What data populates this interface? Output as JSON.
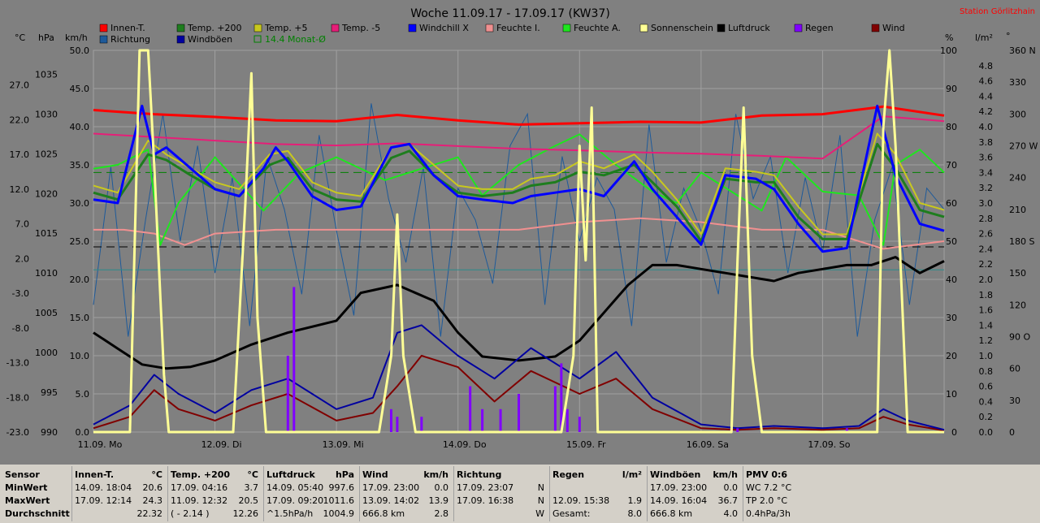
{
  "title": "Woche 11.09.17 - 17.09.17 (KW37)",
  "station": "Station Görlitzhain",
  "colors": {
    "background": "#808080",
    "grid": "#a0a0a0",
    "innen": "#ff0000",
    "richtung": "#1e5a9a",
    "temp200": "#1e7d1e",
    "windboeen": "#0000a0",
    "temp5": "#c8c81e",
    "avg": "#008000",
    "temp_5": "#e61e78",
    "windchill": "#0000ff",
    "feuchte_i": "#f09090",
    "feuchte_a": "#1ee61e",
    "sonne": "#ffff96",
    "luftdruck": "#000000",
    "regen": "#8000ff",
    "wind": "#800000"
  },
  "legend": [
    {
      "label": "Innen-T.",
      "color": "#ff0000"
    },
    {
      "label": "Temp. +200",
      "color": "#1e7d1e"
    },
    {
      "label": "Temp. +5",
      "color": "#c8c81e"
    },
    {
      "label": "Temp. -5",
      "color": "#e61e78"
    },
    {
      "label": "Windchill X",
      "color": "#0000ff"
    },
    {
      "label": "Feuchte I.",
      "color": "#f09090"
    },
    {
      "label": "Feuchte A.",
      "color": "#1ee61e"
    },
    {
      "label": "Sonnenschein",
      "color": "#ffff96"
    },
    {
      "label": "Luftdruck",
      "color": "#000000"
    },
    {
      "label": "Regen",
      "color": "#8000ff"
    },
    {
      "label": "Wind",
      "color": "#800000"
    },
    {
      "label": "Richtung",
      "color": "#1e5a9a"
    },
    {
      "label": "Windböen",
      "color": "#0000a0"
    },
    {
      "label": "14.4 Monat-Ø",
      "color": "#008000"
    }
  ],
  "axis_units": {
    "celsius": "°C",
    "hpa": "hPa",
    "kmh": "km/h",
    "percent": "%",
    "lm2": "l/m²",
    "deg": "°"
  },
  "chart_data": {
    "type": "line",
    "title": "Woche 11.09.17 - 17.09.17 (KW37)",
    "x_ticks": [
      "11.09. Mo",
      "12.09. Di",
      "13.09. Mi",
      "14.09. Do",
      "15.09. Fr",
      "16.09. Sa",
      "17.09. So"
    ],
    "axes": {
      "celsius": {
        "range": [
          -23.0,
          32.0
        ],
        "ticks": [
          "27.0",
          "22.0",
          "17.0",
          "12.0",
          "7.0",
          "2.0",
          "-3.0",
          "-8.0",
          "-13.0",
          "-18.0",
          "-23.0"
        ]
      },
      "hpa": {
        "range": [
          990,
          1038
        ],
        "ticks": [
          "1035",
          "1030",
          "1025",
          "1020",
          "1015",
          "1010",
          "1005",
          "1000",
          "995",
          "990"
        ]
      },
      "kmh": {
        "range": [
          0.0,
          50.0
        ],
        "ticks": [
          "50.0",
          "45.0",
          "40.0",
          "35.0",
          "30.0",
          "25.0",
          "20.0",
          "15.0",
          "10.0",
          "5.0",
          "0.0"
        ]
      },
      "percent": {
        "range": [
          0,
          100
        ],
        "ticks": [
          "100",
          "90",
          "80",
          "70",
          "60",
          "50",
          "40",
          "30",
          "20",
          "10",
          "0"
        ]
      },
      "lm2": {
        "range": [
          0.0,
          5.0
        ],
        "ticks": [
          "4.8",
          "4.6",
          "4.4",
          "4.2",
          "4.0",
          "3.8",
          "3.6",
          "3.4",
          "3.2",
          "3.0",
          "2.8",
          "2.6",
          "2.4",
          "2.2",
          "2.0",
          "1.8",
          "1.6",
          "1.4",
          "1.2",
          "1.0",
          "0.8",
          "0.6",
          "0.4",
          "0.2",
          "0.0"
        ]
      },
      "deg": {
        "range": [
          0,
          360
        ],
        "ticks": [
          "360 N",
          "330",
          "300",
          "270 W",
          "240",
          "210",
          "180 S",
          "150",
          "120",
          "90 O",
          "60",
          "30",
          "0"
        ]
      }
    },
    "series": [
      {
        "name": "Innen-T.",
        "axis": "celsius",
        "x": [
          0,
          0.5,
          1,
          1.5,
          2,
          2.5,
          3,
          3.5,
          4,
          4.5,
          5,
          5.5,
          6,
          6.5,
          7
        ],
        "y": [
          23.4,
          22.8,
          22.4,
          21.9,
          21.8,
          22.7,
          21.9,
          21.3,
          21.5,
          21.7,
          21.6,
          22.6,
          22.8,
          23.9,
          22.6
        ]
      },
      {
        "name": "Temp. -5",
        "axis": "celsius",
        "x": [
          0,
          0.5,
          1,
          1.5,
          2,
          2.5,
          3,
          3.5,
          4,
          4.5,
          5,
          5.5,
          6,
          6.5,
          7
        ],
        "y": [
          20.0,
          19.5,
          19.0,
          18.5,
          18.3,
          18.6,
          18.2,
          17.8,
          17.6,
          17.3,
          17.1,
          16.8,
          16.4,
          22.5,
          21.8
        ]
      },
      {
        "name": "Temp. +200",
        "axis": "celsius",
        "x": [
          0,
          0.2,
          0.45,
          0.6,
          0.8,
          1,
          1.2,
          1.45,
          1.6,
          1.8,
          2,
          2.2,
          2.45,
          2.6,
          2.8,
          3,
          3.2,
          3.45,
          3.6,
          3.8,
          4,
          4.2,
          4.45,
          4.6,
          4.8,
          5,
          5.2,
          5.45,
          5.6,
          5.8,
          6,
          6.2,
          6.45,
          6.6,
          6.8,
          7
        ],
        "y": [
          11.5,
          10.5,
          17.0,
          16.2,
          14.0,
          12.0,
          11.0,
          15.5,
          16.5,
          12.0,
          10.5,
          10.2,
          16.5,
          17.5,
          14.0,
          11.5,
          11.0,
          11.5,
          12.5,
          13.0,
          14.5,
          14.0,
          15.5,
          13.0,
          9.5,
          4.5,
          13.5,
          13.0,
          13.0,
          8.0,
          4.8,
          4.8,
          18.5,
          15.0,
          9.0,
          8.0
        ]
      },
      {
        "name": "Temp. +5",
        "axis": "celsius",
        "x": [
          0,
          0.2,
          0.45,
          0.6,
          0.8,
          1,
          1.2,
          1.45,
          1.6,
          1.8,
          2,
          2.2,
          2.45,
          2.6,
          2.8,
          3,
          3.2,
          3.45,
          3.6,
          3.8,
          4,
          4.2,
          4.45,
          4.6,
          4.8,
          5,
          5.2,
          5.45,
          5.6,
          5.8,
          6,
          6.2,
          6.45,
          6.6,
          6.8,
          7
        ],
        "y": [
          12.5,
          11.5,
          19.0,
          17.0,
          15.0,
          13.0,
          12.0,
          17.0,
          17.5,
          13.0,
          11.5,
          11.0,
          18.0,
          18.5,
          15.5,
          12.5,
          12.0,
          12.0,
          13.5,
          14.0,
          16.0,
          15.0,
          17.0,
          14.5,
          10.5,
          5.5,
          15.0,
          14.5,
          14.0,
          9.5,
          5.5,
          5.5,
          20.0,
          17.0,
          10.0,
          9.0
        ]
      },
      {
        "name": "Windchill X",
        "axis": "celsius",
        "x": [
          0,
          0.2,
          0.4,
          0.5,
          0.6,
          0.8,
          1,
          1.2,
          1.4,
          1.5,
          1.6,
          1.8,
          2,
          2.2,
          2.45,
          2.6,
          2.8,
          3,
          3.2,
          3.45,
          3.6,
          3.8,
          4,
          4.2,
          4.45,
          4.6,
          4.8,
          5,
          5.2,
          5.45,
          5.6,
          5.8,
          6,
          6.2,
          6.45,
          6.6,
          6.8,
          7
        ],
        "y": [
          10.5,
          10.0,
          24.0,
          17.0,
          18.0,
          15.0,
          12.0,
          11.0,
          15.0,
          18.0,
          16.0,
          11.0,
          9.0,
          9.5,
          18.0,
          18.5,
          14.0,
          11.0,
          10.5,
          10.0,
          11.0,
          11.5,
          12.0,
          11.0,
          16.0,
          12.0,
          8.0,
          4.0,
          14.0,
          13.5,
          12.0,
          7.0,
          3.0,
          3.5,
          24.0,
          14.0,
          7.0,
          6.0
        ]
      },
      {
        "name": "Feuchte A.",
        "axis": "percent",
        "x": [
          0,
          0.2,
          0.45,
          0.55,
          0.7,
          1,
          1.4,
          1.7,
          2,
          2.4,
          2.7,
          3,
          3.2,
          3.5,
          3.8,
          4,
          4.3,
          4.6,
          4.8,
          5,
          5.3,
          5.5,
          5.7,
          6,
          6.3,
          6.5,
          6.6,
          6.8,
          7
        ],
        "y": [
          69,
          70,
          74,
          49,
          60,
          72,
          58,
          68,
          72,
          66,
          69,
          72,
          62,
          70,
          75,
          78,
          70,
          63,
          60,
          68,
          62,
          58,
          72,
          63,
          62,
          49,
          70,
          74,
          68
        ]
      },
      {
        "name": "Feuchte I.",
        "axis": "percent",
        "x": [
          0,
          0.25,
          0.5,
          0.75,
          1,
          1.5,
          2,
          2.5,
          3,
          3.5,
          4,
          4.5,
          5,
          5.5,
          6,
          6.5,
          7
        ],
        "y": [
          53,
          53,
          52,
          49,
          52,
          53,
          53,
          53,
          53,
          53,
          55,
          56,
          55,
          53,
          53,
          48,
          50
        ]
      },
      {
        "name": "Luftdruck",
        "axis": "hpa",
        "x": [
          0,
          0.2,
          0.4,
          0.6,
          0.8,
          1,
          1.3,
          1.6,
          2,
          2.2,
          2.5,
          2.8,
          3,
          3.2,
          3.5,
          3.8,
          4,
          4.2,
          4.4,
          4.6,
          4.8,
          5,
          5.2,
          5.4,
          5.6,
          5.8,
          6,
          6.2,
          6.4,
          6.6,
          6.8,
          7
        ],
        "y": [
          1002.5,
          1000.5,
          998.5,
          998.0,
          998.2,
          999.0,
          1001.0,
          1002.5,
          1004.0,
          1007.5,
          1008.5,
          1006.5,
          1002.5,
          999.5,
          999.0,
          999.5,
          1001.5,
          1005.0,
          1008.5,
          1011.0,
          1011.0,
          1010.5,
          1010.0,
          1009.5,
          1009.0,
          1010.0,
          1010.5,
          1011.0,
          1011.0,
          1012.0,
          1010.0,
          1011.5
        ]
      },
      {
        "name": "Wind",
        "axis": "kmh",
        "x": [
          0,
          0.3,
          0.5,
          0.7,
          1,
          1.3,
          1.6,
          2,
          2.3,
          2.5,
          2.7,
          3,
          3.3,
          3.6,
          4,
          4.3,
          4.6,
          5,
          5.3,
          5.6,
          6,
          6.3,
          6.5,
          6.7,
          7
        ],
        "y": [
          0.5,
          2.0,
          5.5,
          3.0,
          1.5,
          3.5,
          5.0,
          1.5,
          2.5,
          6.0,
          10.0,
          8.5,
          4.0,
          8.0,
          5.0,
          7.0,
          3.0,
          0.5,
          0.3,
          0.5,
          0.3,
          0.5,
          2.0,
          1.0,
          0.2
        ]
      },
      {
        "name": "Windböen",
        "axis": "kmh",
        "x": [
          0,
          0.3,
          0.5,
          0.7,
          1,
          1.3,
          1.6,
          2,
          2.3,
          2.5,
          2.7,
          3,
          3.3,
          3.6,
          4,
          4.3,
          4.6,
          5,
          5.3,
          5.6,
          6,
          6.3,
          6.5,
          6.7,
          7
        ],
        "y": [
          1.0,
          3.5,
          7.5,
          5.0,
          2.5,
          5.5,
          7.0,
          3.0,
          4.5,
          13.0,
          14.0,
          10.0,
          7.0,
          11.0,
          7.0,
          10.5,
          4.5,
          1.0,
          0.5,
          0.8,
          0.5,
          0.8,
          3.0,
          1.5,
          0.3
        ]
      },
      {
        "name": "Sonnenschein",
        "axis": "percent",
        "x": [
          0,
          0.3,
          0.38,
          0.45,
          0.5,
          0.58,
          0.62,
          1.15,
          1.25,
          1.3,
          1.35,
          1.42,
          2.35,
          2.45,
          2.5,
          2.55,
          2.65,
          3.85,
          3.95,
          4.0,
          4.05,
          4.1,
          4.15,
          5.25,
          5.3,
          5.35,
          5.42,
          5.5,
          6.45,
          6.5,
          6.55,
          6.6,
          6.7,
          7
        ],
        "y": [
          0,
          0,
          100,
          100,
          70,
          15,
          0,
          0,
          60,
          94,
          30,
          0,
          0,
          20,
          57,
          20,
          0,
          0,
          20,
          75,
          45,
          85,
          0,
          0,
          45,
          85,
          20,
          0,
          0,
          80,
          100,
          75,
          0,
          0
        ]
      },
      {
        "name": "Regen",
        "axis": "lm2",
        "x": [
          1.6,
          1.65,
          2.45,
          2.5,
          2.7,
          3.1,
          3.2,
          3.35,
          3.5,
          3.8,
          3.85,
          3.9,
          4.0,
          5.25,
          5.3,
          6.2
        ],
        "y": [
          1.0,
          1.9,
          0.3,
          0.2,
          0.2,
          0.6,
          0.3,
          0.3,
          0.5,
          0.6,
          0.9,
          0.3,
          0.2,
          0.05,
          0.05,
          0.05
        ]
      }
    ],
    "reference_lines": [
      {
        "axis": "celsius",
        "value": 14.4,
        "color": "#008000",
        "style": "dashed"
      },
      {
        "axis": "percent",
        "value": 48.5,
        "color": "#000000",
        "style": "dashed"
      },
      {
        "axis": "percent",
        "value": 42.5,
        "color": "#2a8a8a",
        "style": "solid"
      }
    ],
    "richtung": {
      "axis": "deg",
      "values": [
        120,
        250,
        90,
        200,
        300,
        180,
        270,
        150,
        240,
        100,
        260,
        210,
        130,
        280,
        190,
        110,
        310,
        220,
        160,
        250,
        90,
        230,
        200,
        140,
        270,
        300,
        120,
        260,
        180,
        240,
        210,
        100,
        290,
        160,
        230,
        190,
        130,
        300,
        220,
        260,
        150,
        240,
        170,
        280,
        90,
        200,
        250,
        120,
        230,
        210
      ]
    }
  },
  "footer": {
    "columns": [
      {
        "header": [
          "Sensor"
        ],
        "rows": [
          [
            "MinWert"
          ],
          [
            "MaxWert"
          ],
          [
            "Durchschnitt"
          ]
        ]
      },
      {
        "header": [
          "Innen-T.",
          "°C"
        ],
        "rows": [
          [
            "14.09.  18:04",
            "20.6"
          ],
          [
            "17.09.  12:14",
            "24.3"
          ],
          [
            "",
            "22.32"
          ]
        ]
      },
      {
        "header": [
          "Temp. +200",
          "°C"
        ],
        "rows": [
          [
            "17.09.  04:16",
            "3.7"
          ],
          [
            "11.09.  12:32",
            "20.5"
          ],
          [
            "( - 2.14 )",
            "12.26"
          ]
        ]
      },
      {
        "header": [
          "Luftdruck",
          "hPa"
        ],
        "rows": [
          [
            "14.09.  05:40",
            "997.6"
          ],
          [
            "17.09.  09:20",
            "1011.6"
          ],
          [
            "^1.5hPa/h",
            "1004.9"
          ]
        ]
      },
      {
        "header": [
          "Wind",
          "km/h"
        ],
        "rows": [
          [
            "17.09.  23:00",
            "0.0"
          ],
          [
            "13.09.  14:02",
            "13.9"
          ],
          [
            "666.8 km",
            "2.8"
          ]
        ]
      },
      {
        "header": [
          "Richtung",
          ""
        ],
        "rows": [
          [
            "17.09.  23:07",
            "N"
          ],
          [
            "17.09.  16:38",
            "N"
          ],
          [
            "",
            "W"
          ]
        ]
      },
      {
        "header": [
          "Regen",
          "l/m²"
        ],
        "rows": [
          [
            "",
            ""
          ],
          [
            "12.09.  15:38",
            "1.9"
          ],
          [
            "Gesamt:",
            "8.0"
          ]
        ]
      },
      {
        "header": [
          "Windböen",
          "km/h"
        ],
        "rows": [
          [
            "17.09.  23:00",
            "0.0"
          ],
          [
            "14.09.  16:04",
            "36.7"
          ],
          [
            "666.8 km",
            "4.0"
          ]
        ]
      },
      {
        "header": [
          "PMV 0:6"
        ],
        "rows": [
          [
            "WC 7.2 °C"
          ],
          [
            "TP 2.0 °C"
          ],
          [
            "0.4hPa/3h"
          ]
        ]
      }
    ]
  }
}
